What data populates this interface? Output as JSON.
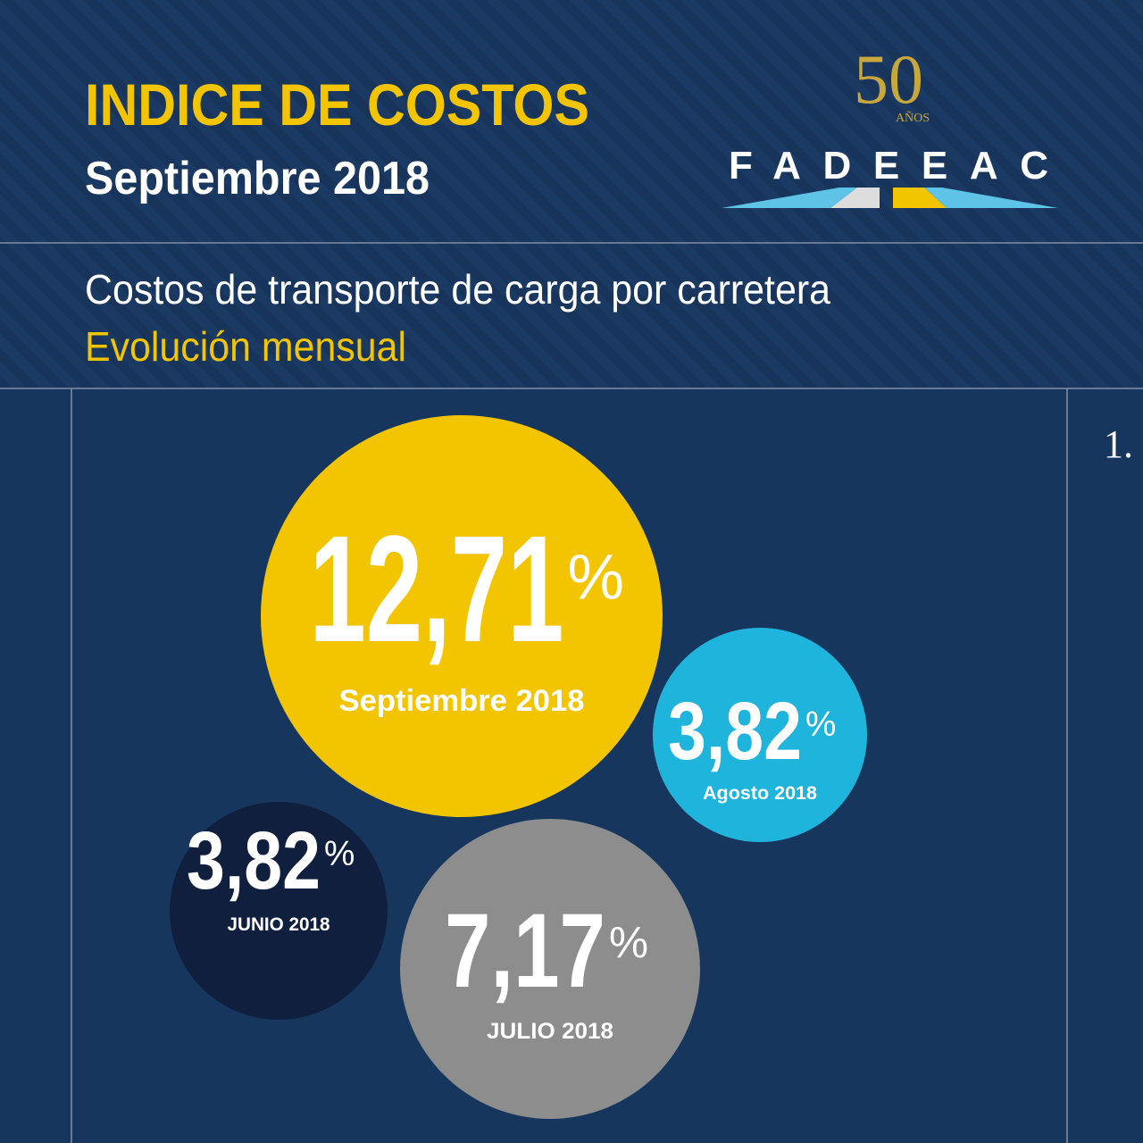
{
  "header": {
    "title": "INDICE DE COSTOS",
    "subtitle": "Septiembre 2018"
  },
  "logo": {
    "number": "50",
    "years": "AÑOS",
    "name": "FADEEAC"
  },
  "section": {
    "title": "Costos de transporte de carga por carretera",
    "subtitle": "Evolución mensual"
  },
  "bubbles": [
    {
      "value": "12,71",
      "unit": "%",
      "label": "Septiembre 2018"
    },
    {
      "value": "3,82",
      "unit": "%",
      "label": "Agosto 2018"
    },
    {
      "value": "3,82",
      "unit": "%",
      "label": "JUNIO 2018"
    },
    {
      "value": "7,17",
      "unit": "%",
      "label": "JULIO 2018"
    }
  ],
  "side_note": "1."
}
